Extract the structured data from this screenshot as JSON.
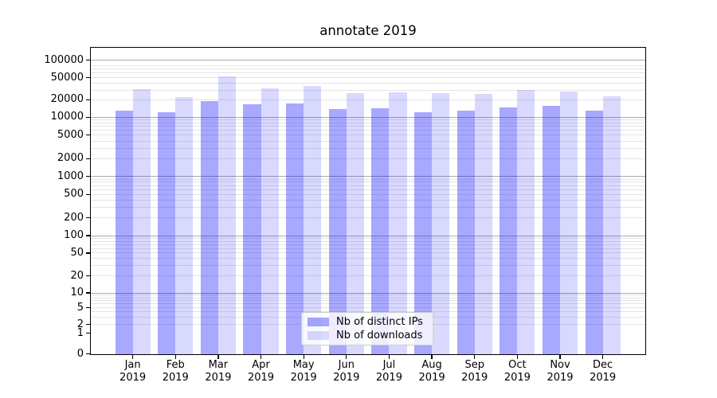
{
  "title": "annotate 2019",
  "legend": {
    "items": [
      {
        "label": "Nb of distinct IPs",
        "swatch": "rgba(0,0,255,0.34)"
      },
      {
        "label": "Nb of downloads",
        "swatch": "rgba(0,0,255,0.15)"
      }
    ]
  },
  "axes": {
    "y_ticks": [
      {
        "label": "100000",
        "value": 100000
      },
      {
        "label": "50000",
        "value": 50000
      },
      {
        "label": "20000",
        "value": 20000
      },
      {
        "label": "10000",
        "value": 10000
      },
      {
        "label": "5000",
        "value": 5000
      },
      {
        "label": "2000",
        "value": 2000
      },
      {
        "label": "1000",
        "value": 1000
      },
      {
        "label": "500",
        "value": 500
      },
      {
        "label": "200",
        "value": 200
      },
      {
        "label": "100",
        "value": 100
      },
      {
        "label": "50",
        "value": 50
      },
      {
        "label": "20",
        "value": 20
      },
      {
        "label": "10",
        "value": 10
      },
      {
        "label": "5",
        "value": 5
      },
      {
        "label": "2",
        "value": 2
      },
      {
        "label": "1",
        "value": 1
      },
      {
        "label": "0",
        "value": 0
      }
    ],
    "x_tick_labels": [
      {
        "line1": "Jan",
        "line2": "2019"
      },
      {
        "line1": "Feb",
        "line2": "2019"
      },
      {
        "line1": "Mar",
        "line2": "2019"
      },
      {
        "line1": "Apr",
        "line2": "2019"
      },
      {
        "line1": "May",
        "line2": "2019"
      },
      {
        "line1": "Jun",
        "line2": "2019"
      },
      {
        "line1": "Jul",
        "line2": "2019"
      },
      {
        "line1": "Aug",
        "line2": "2019"
      },
      {
        "line1": "Sep",
        "line2": "2019"
      },
      {
        "line1": "Oct",
        "line2": "2019"
      },
      {
        "line1": "Nov",
        "line2": "2019"
      },
      {
        "line1": "Dec",
        "line2": "2019"
      }
    ]
  },
  "colors": {
    "bar_ips": "rgba(0,0,255,0.34)",
    "bar_downloads": "rgba(0,0,255,0.15)",
    "grid_major": "#ababab",
    "grid_minor": "#e4e4e4",
    "spine": "#000000"
  },
  "chart_data": {
    "type": "bar",
    "title": "annotate 2019",
    "categories": [
      "Jan 2019",
      "Feb 2019",
      "Mar 2019",
      "Apr 2019",
      "May 2019",
      "Jun 2019",
      "Jul 2019",
      "Aug 2019",
      "Sep 2019",
      "Oct 2019",
      "Nov 2019",
      "Dec 2019"
    ],
    "series": [
      {
        "name": "Nb of distinct IPs",
        "values": [
          12800,
          12300,
          18900,
          16700,
          17000,
          14000,
          14300,
          12300,
          12900,
          14900,
          15500,
          12900
        ]
      },
      {
        "name": "Nb of downloads",
        "values": [
          31000,
          22400,
          53000,
          32500,
          35500,
          26000,
          27000,
          26500,
          25300,
          30000,
          28500,
          22900
        ]
      }
    ],
    "xlabel": "",
    "ylabel": "",
    "yscale": "symlog",
    "ylim": [
      0,
      160000
    ],
    "yticks": [
      0,
      1,
      2,
      5,
      10,
      20,
      50,
      100,
      200,
      500,
      1000,
      2000,
      5000,
      10000,
      20000,
      50000,
      100000
    ],
    "grid": "both",
    "legend_position": "lower center"
  }
}
